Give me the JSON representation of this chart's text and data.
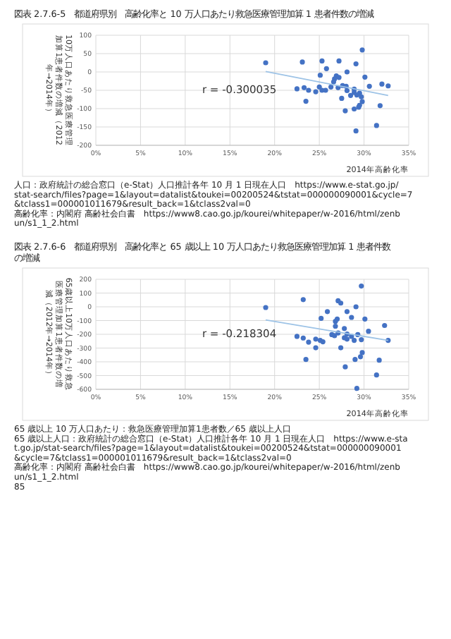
{
  "chart_data": [
    {
      "type": "scatter",
      "title": "図表 2.7.6-5　都道府県別　高齢化率と 10 万人口あたり救急医療管理加算 1 患者件数の増減",
      "xlabel": "2014年高齢化率",
      "ylabel": "10万人口あたり救急医療管理加算1患者件数の増減（2012年→2014年）",
      "xlim": [
        0,
        35
      ],
      "xticks": [
        {
          "value": 0,
          "label": "0%"
        },
        {
          "value": 5,
          "label": "5%"
        },
        {
          "value": 10,
          "label": "10%"
        },
        {
          "value": 15,
          "label": "15%"
        },
        {
          "value": 20,
          "label": "20%"
        },
        {
          "value": 25,
          "label": "25%"
        },
        {
          "value": 30,
          "label": "30%"
        },
        {
          "value": 35,
          "label": "35%"
        }
      ],
      "ylim": [
        -200,
        100
      ],
      "yticks": [
        -200,
        -150,
        -100,
        -50,
        0,
        50,
        100
      ],
      "grid": true,
      "marker": "circle",
      "series": [
        {
          "color": "#4472c4",
          "x": [
            19.0,
            23.1,
            25.3,
            27.2,
            29.8,
            29.1,
            25.8,
            28.1,
            30.1,
            25.1,
            26.9,
            27.2,
            26.7,
            26.6,
            27.6,
            28.0,
            27.1,
            26.3,
            25.0,
            25.3,
            25.7,
            24.6,
            23.8,
            23.3,
            22.5,
            23.5,
            28.9,
            28.1,
            28.9,
            29.5,
            28.5,
            29.2,
            27.5,
            29.7,
            30.6,
            32.0,
            32.7,
            29.8,
            29.5,
            29.4,
            28.9,
            27.9,
            31.8,
            29.1,
            31.4
          ],
          "values": [
            25,
            27,
            30,
            30,
            60,
            22,
            9,
            0,
            -14,
            -9,
            -11,
            -15,
            -19,
            -27,
            -37,
            -39,
            -43,
            -41,
            -41,
            -50,
            -50,
            -54,
            -50,
            -43,
            -46,
            -80,
            -47,
            -51,
            -56,
            -58,
            -64,
            -63,
            -72,
            -68,
            -39,
            -33,
            -38,
            -81,
            -91,
            -96,
            -101,
            -106,
            -92,
            -161,
            -146
          ]
        },
        {
          "type": "line",
          "marker": "none",
          "color": "#9dc3e6",
          "x": [
            19,
            32.7
          ],
          "values": [
            1,
            -64
          ]
        }
      ],
      "annotations": [
        "r = -0.300035",
        "人口：政府統計の総合窓口（e-Stat）人口推計各年 10 月 1 日現在人口　https://www.e-stat.go.jp/stat-search/files?page=1&layout=datalist&toukei=00200524&tstat=000000090001&cycle=7&tclass1=000001011679&result_back=1&tclass2val=0",
        "高齢化率：内閣府 高齢社会白書　https://www8.cao.go.jp/kourei/whitepaper/w-2016/html/zenbun/s1_1_2.html"
      ]
    },
    {
      "type": "scatter",
      "title": "図表 2.7.6-6　都道府県別　高齢化率と 65 歳以上 10 万人口あたり救急医療管理加算 1 患者件数の増減",
      "xlabel": "2014年高齢化率",
      "ylabel": "65歳以上10万人口あたり救急医療管理加算1患者件数の増減（2012年→2014年）",
      "xlim": [
        0,
        35
      ],
      "xticks": [
        {
          "value": 0,
          "label": "0%"
        },
        {
          "value": 5,
          "label": "5%"
        },
        {
          "value": 10,
          "label": "10%"
        },
        {
          "value": 15,
          "label": "15%"
        },
        {
          "value": 20,
          "label": "20%"
        },
        {
          "value": 25,
          "label": "25%"
        },
        {
          "value": 30,
          "label": "30%"
        },
        {
          "value": 35,
          "label": "35%"
        }
      ],
      "ylim": [
        -600,
        200
      ],
      "yticks": [
        -600,
        -500,
        -400,
        -300,
        -200,
        -100,
        0,
        100,
        200
      ],
      "grid": true,
      "marker": "circle",
      "series": [
        {
          "color": "#4472c4",
          "x": [
            19.0,
            23.2,
            27.1,
            27.4,
            29.7,
            29.1,
            25.9,
            28.1,
            28.6,
            25.2,
            27.0,
            26.8,
            30.1,
            26.8,
            27.8,
            32.3,
            30.5,
            27.1,
            26.4,
            26.7,
            28.1,
            28.6,
            29.3,
            27.8,
            28.1,
            25.1,
            25.4,
            24.6,
            23.8,
            22.5,
            23.2,
            28.9,
            29.7,
            32.7,
            27.4,
            24.6,
            29.8,
            31.7,
            29.0,
            29.6,
            23.5,
            27.9,
            31.4,
            29.2
          ],
          "values": [
            -5,
            52,
            44,
            27,
            151,
            0,
            -35,
            -35,
            -77,
            -84,
            -89,
            -106,
            -89,
            -141,
            -158,
            -136,
            -178,
            -190,
            -202,
            -210,
            -198,
            -215,
            -202,
            -225,
            -235,
            -244,
            -254,
            -235,
            -257,
            -215,
            -227,
            -244,
            -239,
            -244,
            -298,
            -298,
            -333,
            -388,
            -383,
            -363,
            -383,
            -437,
            -496,
            -593
          ]
        },
        {
          "type": "line",
          "marker": "none",
          "color": "#9dc3e6",
          "x": [
            19,
            32.7
          ],
          "values": [
            -96,
            -244
          ]
        }
      ],
      "annotations": [
        "r = -0.218304",
        "65 歳以上 10 万人口あたり：救急医療管理加算1患者数／65 歳以上人口",
        "65 歳以上人口：政府統計の総合窓口（e-Stat）人口推計各年 10 月 1 日現在人口　https://www.e-stat.go.jp/stat-search/files?page=1&layout=datalist&toukei=00200524&tstat=000000090001&cycle=7&tclass1=000001011679&result_back=1&tclass2val=0",
        "高齢化率：内閣府 高齢社会白書　https://www8.cao.go.jp/kourei/whitepaper/w-2016/html/zenbun/s1_1_2.html",
        "85"
      ]
    }
  ]
}
